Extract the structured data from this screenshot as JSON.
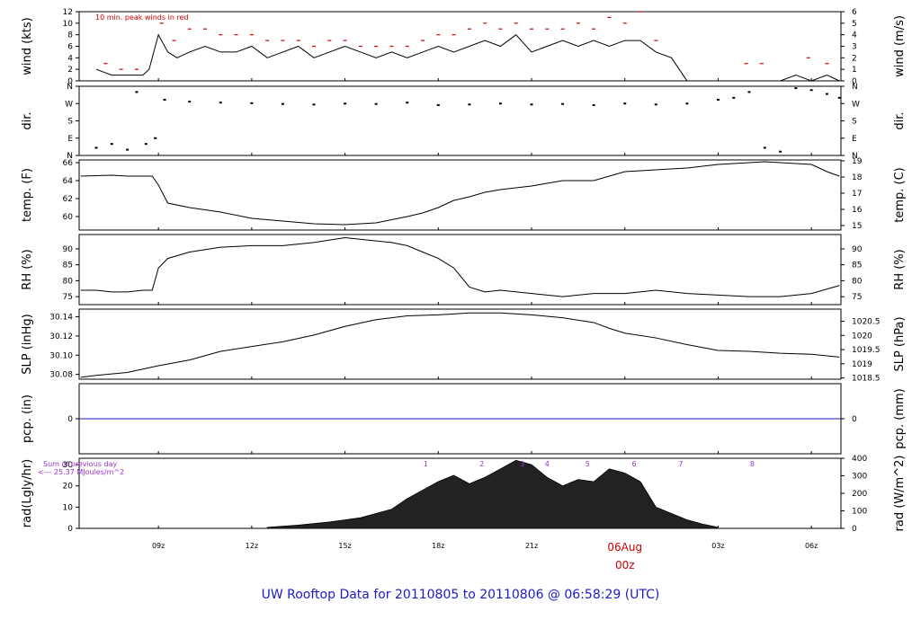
{
  "chart_data": {
    "type": "line",
    "title": "UW Rooftop Data for 20110805  to  20110806 @ 06:58:29  (UTC)",
    "x_ticks": [
      "09z",
      "12z",
      "15z",
      "18z",
      "21z",
      "06Aug",
      "03z",
      "06z"
    ],
    "date_marker": {
      "date": "06Aug",
      "hour": "00z"
    },
    "panels": [
      {
        "id": "wind",
        "ylabel_left": "wind (kts)",
        "ylabel_right": "wind (m/s)",
        "yticks_left": [
          "0",
          "2",
          "4",
          "6",
          "8",
          "10",
          "12"
        ],
        "yticks_right": [
          "0",
          "1",
          "2",
          "3",
          "4",
          "5",
          "6"
        ],
        "ylim": [
          0,
          12
        ],
        "annotation": "10 min. peak winds in red",
        "series": [
          {
            "name": "wind",
            "x": [
              7.0,
              7.5,
              8.0,
              8.5,
              8.7,
              9.0,
              9.3,
              9.6,
              10.0,
              10.5,
              11.0,
              11.5,
              12.0,
              12.5,
              13.0,
              13.5,
              14.0,
              14.5,
              15.0,
              15.5,
              16.0,
              16.5,
              17.0,
              17.5,
              18.0,
              18.5,
              19.0,
              19.5,
              20.0,
              20.5,
              21.0,
              21.5,
              22.0,
              22.5,
              23.0,
              23.5,
              24.0,
              24.5,
              25.0,
              25.5,
              26.0,
              26.5,
              27.0,
              27.5,
              28.0,
              28.5,
              29.0,
              29.5,
              30.0,
              30.5,
              30.9
            ],
            "y": [
              2,
              1,
              1,
              1,
              2,
              8,
              5,
              4,
              5,
              6,
              5,
              5,
              6,
              4,
              5,
              6,
              4,
              5,
              6,
              5,
              4,
              5,
              4,
              5,
              6,
              5,
              6,
              7,
              6,
              8,
              5,
              6,
              7,
              6,
              7,
              6,
              7,
              7,
              5,
              4,
              0,
              0,
              0,
              0,
              0,
              0,
              0,
              1,
              0,
              1,
              0
            ]
          },
          {
            "name": "peak",
            "x": [
              7.3,
              7.8,
              8.3,
              9.1,
              9.5,
              10.0,
              10.5,
              11.0,
              11.5,
              12.0,
              12.5,
              13.0,
              13.5,
              14.0,
              14.5,
              15.0,
              15.5,
              16.0,
              16.5,
              17.0,
              17.5,
              18.0,
              18.5,
              19.0,
              19.5,
              20.0,
              20.5,
              21.0,
              21.5,
              22.0,
              22.5,
              23.0,
              23.5,
              24.0,
              24.5,
              25.0,
              27.9,
              28.4,
              29.9,
              30.5
            ],
            "y": [
              3,
              2,
              2,
              10,
              7,
              9,
              9,
              8,
              8,
              8,
              7,
              7,
              7,
              6,
              7,
              7,
              6,
              6,
              6,
              6,
              7,
              8,
              8,
              9,
              10,
              9,
              10,
              9,
              9,
              9,
              10,
              9,
              11,
              10,
              12,
              7,
              3,
              3,
              4,
              3
            ]
          }
        ]
      },
      {
        "id": "dir",
        "ylabel_left": "dir.",
        "ylabel_right": "dir.",
        "yticks_left": [
          "N",
          "E",
          "S",
          "W",
          "N"
        ],
        "yticks_right": [
          "N",
          "E",
          "S",
          "W",
          "N"
        ],
        "ylim": [
          0,
          360
        ],
        "series": [
          {
            "name": "direction",
            "x": [
              7.0,
              7.5,
              8.0,
              8.3,
              8.6,
              8.9,
              9.2,
              10,
              11,
              12,
              13,
              14,
              15,
              16,
              17,
              18,
              19,
              20,
              21,
              22,
              23,
              24,
              25,
              26,
              27,
              27.5,
              28.0,
              28.5,
              29.0,
              29.5,
              30.0,
              30.5,
              30.9
            ],
            "y": [
              40,
              60,
              30,
              330,
              60,
              90,
              290,
              280,
              275,
              272,
              268,
              265,
              270,
              268,
              275,
              262,
              265,
              270,
              265,
              268,
              262,
              270,
              265,
              270,
              290,
              300,
              330,
              40,
              20,
              350,
              340,
              320,
              300
            ]
          }
        ]
      },
      {
        "id": "temp",
        "ylabel_left": "temp. (F)",
        "ylabel_right": "temp. (C)",
        "yticks_left": [
          "60",
          "62",
          "64",
          "66"
        ],
        "yticks_right": [
          "15",
          "16",
          "17",
          "18",
          "19"
        ],
        "ylim": [
          58.5,
          66.3
        ],
        "series": [
          {
            "name": "temperature",
            "x": [
              6.5,
              7.5,
              8.0,
              8.8,
              9.0,
              9.3,
              10.0,
              11.0,
              12.0,
              13.0,
              14.0,
              15.0,
              16.0,
              17.0,
              17.5,
              18.0,
              18.5,
              19.0,
              19.5,
              20.0,
              21.0,
              22.0,
              23.0,
              23.5,
              24.0,
              25.0,
              26.0,
              27.0,
              28.0,
              28.5,
              29.0,
              29.5,
              30.0,
              30.5,
              30.9
            ],
            "y": [
              64.5,
              64.6,
              64.5,
              64.5,
              63.5,
              61.5,
              61,
              60.5,
              59.8,
              59.5,
              59.2,
              59.1,
              59.3,
              60,
              60.4,
              61,
              61.8,
              62.2,
              62.7,
              63,
              63.4,
              64,
              64,
              64.5,
              65,
              65.2,
              65.4,
              65.8,
              66,
              66.1,
              66,
              65.9,
              65.8,
              65,
              64.5
            ]
          }
        ]
      },
      {
        "id": "rh",
        "ylabel_left": "RH (%)",
        "ylabel_right": "RH (%)",
        "yticks_left": [
          "75",
          "80",
          "85",
          "90"
        ],
        "yticks_right": [
          "75",
          "80",
          "85",
          "90"
        ],
        "ylim": [
          72.5,
          94.5
        ],
        "series": [
          {
            "name": "humidity",
            "x": [
              6.5,
              7.0,
              7.5,
              8.0,
              8.5,
              8.8,
              9.0,
              9.3,
              10.0,
              11.0,
              12.0,
              13.0,
              14.0,
              15.0,
              16.0,
              16.5,
              17.0,
              17.5,
              18.0,
              18.5,
              19.0,
              19.5,
              20.0,
              21.0,
              22.0,
              23.0,
              24.0,
              25.0,
              26.0,
              27.0,
              28.0,
              29.0,
              30.0,
              30.9
            ],
            "y": [
              77,
              77,
              76.5,
              76.5,
              77,
              77,
              84,
              87,
              89,
              90.5,
              91,
              91,
              92,
              93.5,
              92.5,
              92,
              91,
              89,
              87,
              84,
              78,
              76.5,
              77,
              76,
              75,
              76,
              76,
              77,
              76,
              75.5,
              75,
              75,
              76,
              78.5
            ]
          }
        ]
      },
      {
        "id": "slp",
        "ylabel_left": "SLP (inHg)",
        "ylabel_right": "SLP (hPa)",
        "yticks_left": [
          "30.08",
          "30.10",
          "30.12",
          "30.14"
        ],
        "yticks_right": [
          "1018.5",
          "1019",
          "1019.5",
          "1020",
          "1020.5"
        ],
        "ylim": [
          30.075,
          30.148
        ],
        "series": [
          {
            "name": "pressure",
            "x": [
              6.5,
              7.0,
              8.0,
              9.0,
              10.0,
              11.0,
              12.0,
              13.0,
              14.0,
              15.0,
              16.0,
              17.0,
              18.0,
              19.0,
              20.0,
              21.0,
              22.0,
              23.0,
              23.5,
              24.0,
              25.0,
              26.0,
              27.0,
              28.0,
              29.0,
              30.0,
              30.9
            ],
            "y": [
              30.077,
              30.079,
              30.082,
              30.089,
              30.095,
              30.104,
              30.109,
              30.114,
              30.121,
              30.13,
              30.137,
              30.141,
              30.142,
              30.144,
              30.144,
              30.142,
              30.139,
              30.134,
              30.128,
              30.123,
              30.118,
              30.111,
              30.105,
              30.104,
              30.102,
              30.101,
              30.098
            ]
          }
        ]
      },
      {
        "id": "pcp",
        "ylabel_left": "pcp. (in)",
        "ylabel_right": "pcp. (mm)",
        "yticks_left": [
          "0"
        ],
        "yticks_right": [
          "0"
        ],
        "ylim": [
          -1,
          1
        ],
        "series": [
          {
            "name": "precipitation",
            "x": [
              6.5,
              30.9
            ],
            "y": [
              0,
              0
            ]
          }
        ]
      },
      {
        "id": "rad",
        "ylabel_left": "rad(Lgly/hr)",
        "ylabel_right": "rad (W/m^2)",
        "yticks_left": [
          "0",
          "10",
          "20",
          "30"
        ],
        "yticks_right": [
          "0",
          "100",
          "200",
          "300",
          "400"
        ],
        "ylim": [
          0,
          33
        ],
        "annotation_line1": "Sum of previous day",
        "annotation_line2": "<--- 25.37 MJoules/m^2",
        "hour_markers": [
          "1",
          "2",
          "3",
          "4",
          "5",
          "6",
          "7",
          "8"
        ],
        "series": [
          {
            "name": "radiation",
            "x": [
              12.5,
              13.5,
              14.5,
              15.5,
              16.5,
              17.0,
              17.5,
              18.0,
              18.5,
              19.0,
              19.5,
              20.0,
              20.5,
              21.0,
              21.5,
              22.0,
              22.5,
              23.0,
              23.5,
              24.0,
              24.5,
              25.0,
              25.5,
              26.0,
              26.5,
              27.0
            ],
            "y": [
              0.5,
              1.5,
              3,
              5,
              9,
              14,
              18,
              22,
              25,
              21,
              24,
              28,
              32,
              30,
              24,
              20,
              23,
              22,
              28,
              26,
              22,
              10,
              7,
              4,
              2,
              0.5
            ]
          }
        ]
      }
    ]
  }
}
